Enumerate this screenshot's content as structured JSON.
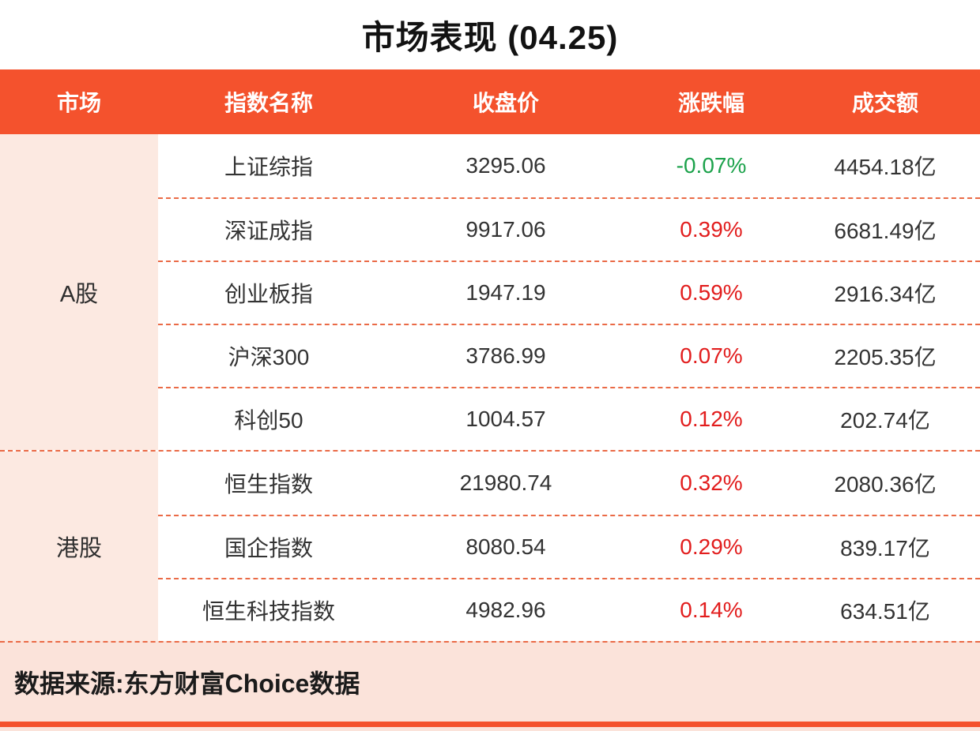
{
  "title": "市场表现 (04.25)",
  "colors": {
    "header_orange": "#F4522D",
    "market_column_peach": "#FCE9E1",
    "footer_peach": "#FBE3DA",
    "divider_dash": "#EA6A46",
    "positive_red": "#E21D1D",
    "negative_green": "#1CA24B"
  },
  "table": {
    "headers": [
      "市场",
      "指数名称",
      "收盘价",
      "涨跌幅",
      "成交额"
    ],
    "sections": [
      {
        "market": "A股",
        "rows": [
          {
            "name": "上证综指",
            "close": "3295.06",
            "change": "-0.07%",
            "direction": "down",
            "volume": "4454.18亿"
          },
          {
            "name": "深证成指",
            "close": "9917.06",
            "change": "0.39%",
            "direction": "up",
            "volume": "6681.49亿"
          },
          {
            "name": "创业板指",
            "close": "1947.19",
            "change": "0.59%",
            "direction": "up",
            "volume": "2916.34亿"
          },
          {
            "name": "沪深300",
            "close": "3786.99",
            "change": "0.07%",
            "direction": "up",
            "volume": "2205.35亿"
          },
          {
            "name": "科创50",
            "close": "1004.57",
            "change": "0.12%",
            "direction": "up",
            "volume": "202.74亿"
          }
        ]
      },
      {
        "market": "港股",
        "rows": [
          {
            "name": "恒生指数",
            "close": "21980.74",
            "change": "0.32%",
            "direction": "up",
            "volume": "2080.36亿"
          },
          {
            "name": "国企指数",
            "close": "8080.54",
            "change": "0.29%",
            "direction": "up",
            "volume": "839.17亿"
          },
          {
            "name": "恒生科技指数",
            "close": "4982.96",
            "change": "0.14%",
            "direction": "up",
            "volume": "634.51亿"
          }
        ]
      }
    ]
  },
  "footer": {
    "source": "数据来源:东方财富Choice数据"
  },
  "chart_data": {
    "type": "table",
    "title": "市场表现 (04.25)",
    "columns": [
      "市场",
      "指数名称",
      "收盘价",
      "涨跌幅",
      "成交额"
    ],
    "rows": [
      [
        "A股",
        "上证综指",
        3295.06,
        -0.07,
        4454.18
      ],
      [
        "A股",
        "深证成指",
        9917.06,
        0.39,
        6681.49
      ],
      [
        "A股",
        "创业板指",
        1947.19,
        0.59,
        2916.34
      ],
      [
        "A股",
        "沪深300",
        3786.99,
        0.07,
        2205.35
      ],
      [
        "A股",
        "科创50",
        1004.57,
        0.12,
        202.74
      ],
      [
        "港股",
        "恒生指数",
        21980.74,
        0.32,
        2080.36
      ],
      [
        "港股",
        "国企指数",
        8080.54,
        0.29,
        839.17
      ],
      [
        "港股",
        "恒生科技指数",
        4982.96,
        0.14,
        634.51
      ]
    ],
    "units": {
      "涨跌幅": "%",
      "成交额": "亿"
    },
    "source": "数据来源:东方财富Choice数据"
  }
}
